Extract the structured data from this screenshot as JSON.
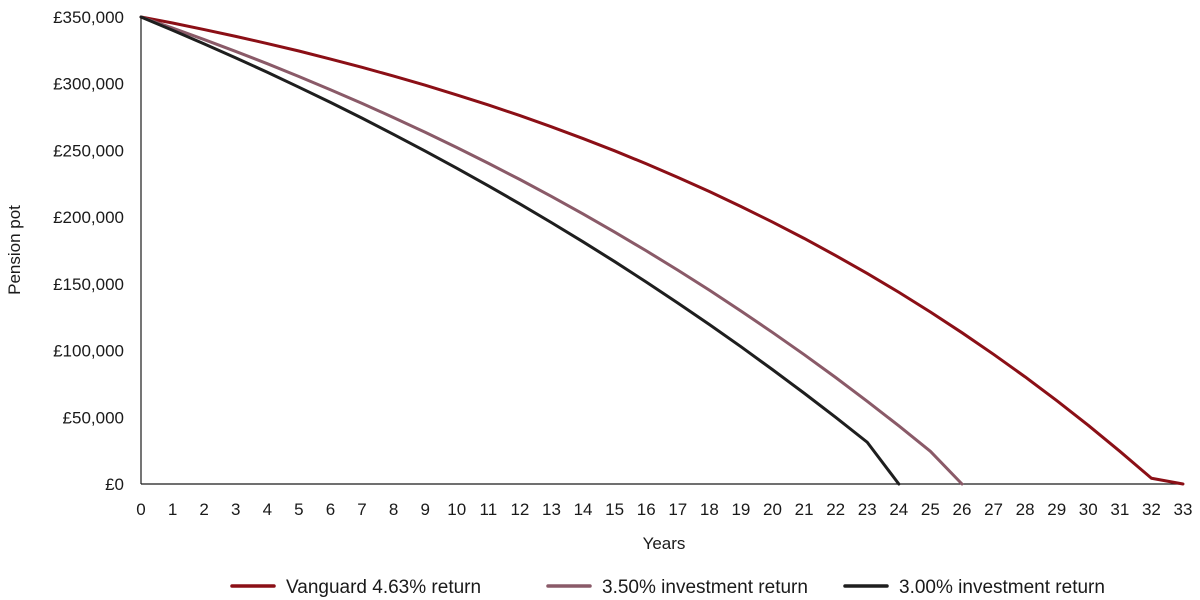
{
  "chart_data": {
    "type": "line",
    "title": "",
    "xlabel": "Years",
    "ylabel": "Pension pot",
    "xlim": [
      0,
      33
    ],
    "ylim": [
      0,
      350000
    ],
    "x_ticks": [
      "0",
      "1",
      "2",
      "3",
      "4",
      "5",
      "6",
      "7",
      "8",
      "9",
      "10",
      "11",
      "12",
      "13",
      "14",
      "15",
      "16",
      "17",
      "18",
      "19",
      "20",
      "21",
      "22",
      "23",
      "24",
      "25",
      "26",
      "27",
      "28",
      "29",
      "30",
      "31",
      "32",
      "33"
    ],
    "y_ticks": [
      {
        "value": 0,
        "label": "£0"
      },
      {
        "value": 50000,
        "label": "£50,000"
      },
      {
        "value": 100000,
        "label": "£100,000"
      },
      {
        "value": 150000,
        "label": "£150,000"
      },
      {
        "value": 200000,
        "label": "£200,000"
      },
      {
        "value": 250000,
        "label": "£250,000"
      },
      {
        "value": 300000,
        "label": "£300,000"
      },
      {
        "value": 350000,
        "label": "£350,000"
      }
    ],
    "grid": false,
    "legend_position": "bottom",
    "series": [
      {
        "name": "Vanguard 4.63% return",
        "color": "#8b0f16",
        "x": [
          0,
          1,
          2,
          3,
          4,
          5,
          6,
          7,
          8,
          9,
          10,
          11,
          12,
          13,
          14,
          15,
          16,
          17,
          18,
          19,
          20,
          21,
          22,
          23,
          24,
          25,
          26,
          27,
          28,
          29,
          30,
          31,
          32,
          33
        ],
        "y": [
          350000,
          345500,
          340600,
          335500,
          330100,
          324500,
          318500,
          312300,
          305700,
          298900,
          291600,
          284100,
          276100,
          267700,
          258900,
          249700,
          240000,
          229800,
          219200,
          208000,
          196300,
          184100,
          171200,
          157800,
          143700,
          128900,
          113400,
          97200,
          80300,
          62500,
          44000,
          24500,
          4300,
          0
        ]
      },
      {
        "name": "3.50% investment return",
        "color": "#8a5a68",
        "x": [
          0,
          1,
          2,
          3,
          4,
          5,
          6,
          7,
          8,
          9,
          10,
          11,
          12,
          13,
          14,
          15,
          16,
          17,
          18,
          19,
          20,
          21,
          22,
          23,
          24,
          25,
          26
        ],
        "y": [
          350000,
          341700,
          333100,
          324200,
          315000,
          305400,
          295500,
          285300,
          274600,
          263600,
          252200,
          240400,
          228200,
          215500,
          202400,
          188800,
          174800,
          160300,
          145300,
          129700,
          113600,
          97000,
          79800,
          62000,
          43600,
          24500,
          0
        ]
      },
      {
        "name": "3.00% investment return",
        "color": "#1e1e1e",
        "x": [
          0,
          1,
          2,
          3,
          4,
          5,
          6,
          7,
          8,
          9,
          10,
          11,
          12,
          13,
          14,
          15,
          16,
          17,
          18,
          19,
          20,
          21,
          22,
          23,
          24
        ],
        "y": [
          350000,
          340100,
          329900,
          319400,
          308600,
          297400,
          286000,
          274200,
          262000,
          249500,
          236700,
          223500,
          209900,
          195900,
          181500,
          166700,
          151400,
          135700,
          119500,
          102900,
          85700,
          68100,
          50000,
          31300,
          0
        ]
      }
    ]
  }
}
